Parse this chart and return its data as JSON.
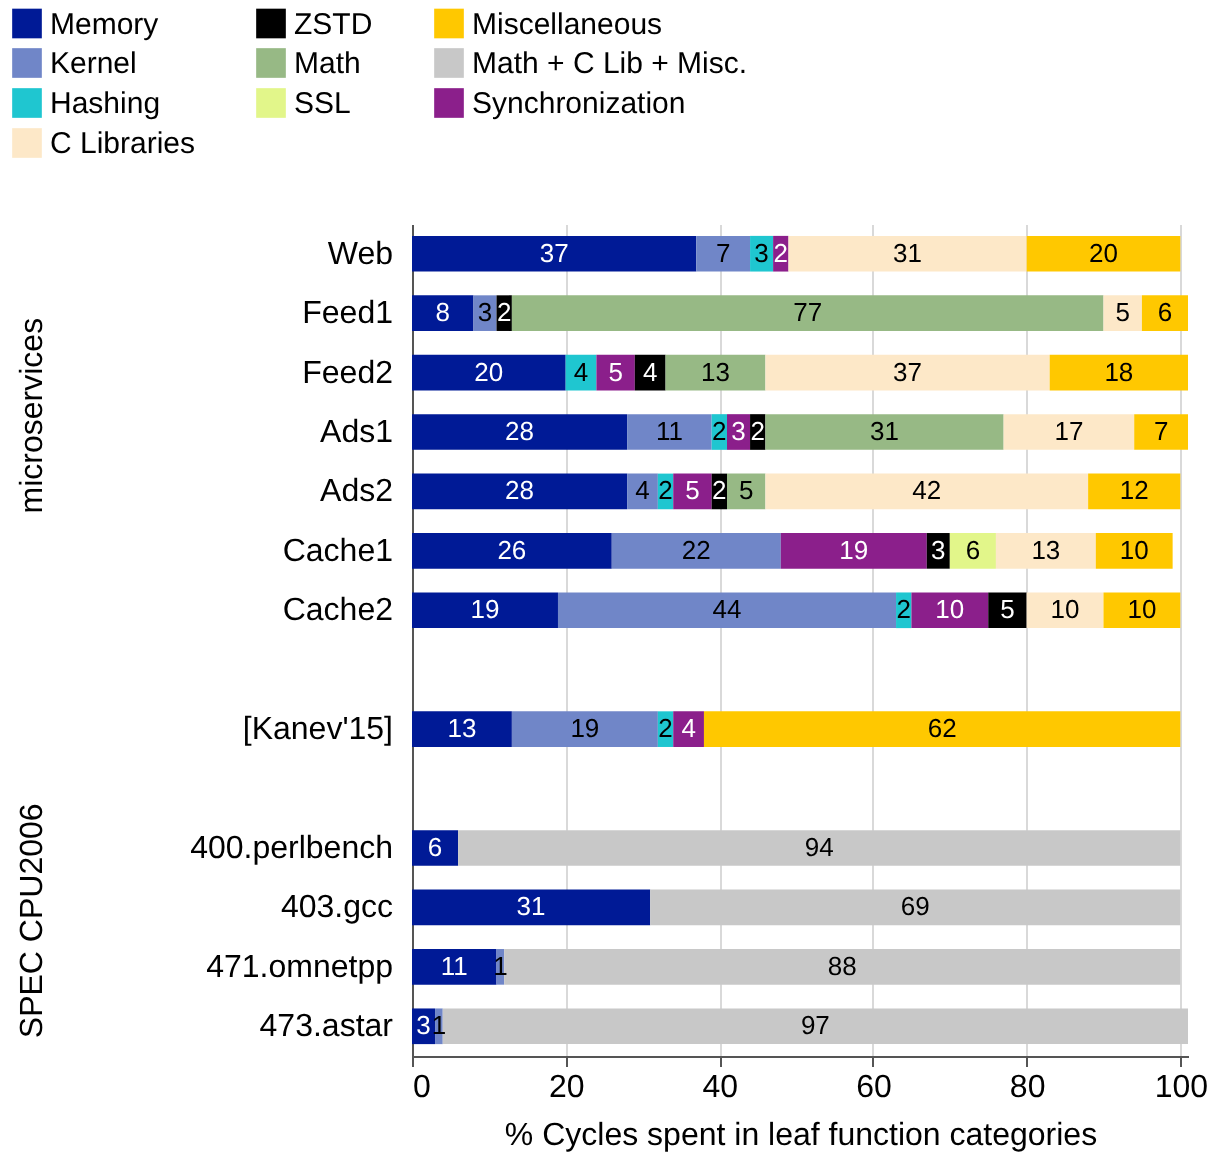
{
  "chart_data": {
    "type": "bar",
    "orientation": "horizontal",
    "stacked": true,
    "categories": [
      "Web",
      "Feed1",
      "Feed2",
      "Ads1",
      "Ads2",
      "Cache1",
      "Cache2",
      null,
      "[Kanev'15]",
      null,
      "400.perlbench",
      "403.gcc",
      "471.omnetpp",
      "473.astar"
    ],
    "series": [
      {
        "name": "Memory",
        "color": "#001a96",
        "values": [
          37,
          8,
          20,
          28,
          28,
          26,
          19,
          null,
          13,
          null,
          6,
          31,
          11,
          3
        ]
      },
      {
        "name": "Kernel",
        "color": "#7086c8",
        "values": [
          7,
          3,
          null,
          11,
          4,
          22,
          44,
          null,
          19,
          null,
          null,
          null,
          1,
          1
        ]
      },
      {
        "name": "Hashing",
        "color": "#1fc6d0",
        "values": [
          3,
          null,
          4,
          2,
          2,
          null,
          2,
          null,
          2,
          null,
          null,
          null,
          null,
          null
        ]
      },
      {
        "name": "Synchronization",
        "color": "#8b1f8b",
        "values": [
          2,
          null,
          5,
          3,
          5,
          19,
          10,
          null,
          4,
          null,
          null,
          null,
          null,
          null
        ]
      },
      {
        "name": "ZSTD",
        "color": "#000000",
        "values": [
          null,
          2,
          4,
          2,
          2,
          3,
          5,
          null,
          null,
          null,
          null,
          null,
          null,
          null
        ]
      },
      {
        "name": "Math",
        "color": "#97b985",
        "values": [
          null,
          77,
          13,
          31,
          5,
          null,
          null,
          null,
          null,
          null,
          null,
          null,
          null,
          null
        ]
      },
      {
        "name": "SSL",
        "color": "#e2f68a",
        "values": [
          null,
          null,
          null,
          null,
          null,
          6,
          null,
          null,
          null,
          null,
          null,
          null,
          null,
          null
        ]
      },
      {
        "name": "C Libraries",
        "color": "#fde8c8",
        "values": [
          31,
          5,
          37,
          17,
          42,
          13,
          10,
          null,
          null,
          null,
          null,
          null,
          null,
          null
        ]
      },
      {
        "name": "Miscellaneous",
        "color": "#ffc800",
        "values": [
          20,
          6,
          18,
          7,
          12,
          10,
          10,
          null,
          62,
          null,
          null,
          null,
          null,
          null
        ]
      },
      {
        "name": "Math + C Lib + Misc.",
        "color": "#c8c8c8",
        "values": [
          null,
          null,
          null,
          null,
          null,
          null,
          null,
          null,
          null,
          null,
          94,
          69,
          88,
          97
        ]
      }
    ],
    "xlabel": "% Cycles spent in leaf function categories",
    "xlim": [
      0,
      101
    ],
    "xticks": [
      0,
      20,
      40,
      60,
      80,
      100
    ],
    "grid": "x",
    "legend": "top",
    "data_labels": true,
    "annotations": [
      "microservices",
      "SPEC CPU2006"
    ]
  }
}
